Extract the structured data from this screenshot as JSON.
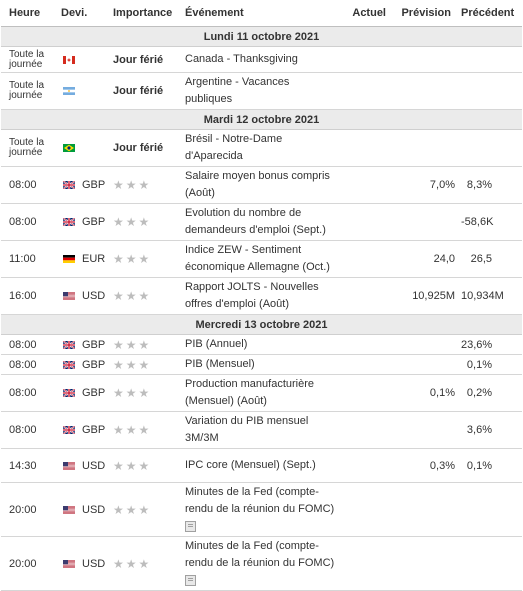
{
  "columns": {
    "time": "Heure",
    "currency": "Devi.",
    "importance": "Importance",
    "event": "Événement",
    "actual": "Actuel",
    "forecast": "Prévision",
    "previous": "Précédent"
  },
  "days": [
    {
      "label": "Lundi 11 octobre 2021",
      "events": [
        {
          "time": "Toute la journée",
          "flag": "ca",
          "currency": "",
          "importance": "Jour férié",
          "event": "Canada - Thanksgiving",
          "actual": "",
          "forecast": "",
          "previous": ""
        },
        {
          "time": "Toute la journée",
          "flag": "ar",
          "currency": "",
          "importance": "Jour férié",
          "event": "Argentine - Vacances publiques",
          "actual": "",
          "forecast": "",
          "previous": ""
        }
      ]
    },
    {
      "label": "Mardi 12 octobre 2021",
      "events": [
        {
          "time": "Toute la journée",
          "flag": "br",
          "currency": "",
          "importance": "Jour férié",
          "event": "Brésil - Notre-Dame d'Aparecida",
          "actual": "",
          "forecast": "",
          "previous": ""
        },
        {
          "time": "08:00",
          "flag": "gb",
          "currency": "GBP",
          "importance": "★★★",
          "event": "Salaire moyen bonus compris (Août)",
          "actual": "",
          "forecast": "7,0%",
          "previous": "8,3%"
        },
        {
          "time": "08:00",
          "flag": "gb",
          "currency": "GBP",
          "importance": "★★★",
          "event": "Evolution du nombre de demandeurs d'emploi (Sept.)",
          "actual": "",
          "forecast": "",
          "previous": "-58,6K"
        },
        {
          "time": "11:00",
          "flag": "de",
          "currency": "EUR",
          "importance": "★★★",
          "event": "Indice ZEW - Sentiment économique Allemagne (Oct.)",
          "actual": "",
          "forecast": "24,0",
          "previous": "26,5"
        },
        {
          "time": "16:00",
          "flag": "us",
          "currency": "USD",
          "importance": "★★★",
          "event": "Rapport JOLTS - Nouvelles offres d'emploi (Août)",
          "actual": "",
          "forecast": "10,925M",
          "previous": "10,934M"
        }
      ]
    },
    {
      "label": "Mercredi 13 octobre 2021",
      "events": [
        {
          "time": "08:00",
          "flag": "gb",
          "currency": "GBP",
          "importance": "★★★",
          "event": "PIB (Annuel)",
          "actual": "",
          "forecast": "",
          "previous": "23,6%"
        },
        {
          "time": "08:00",
          "flag": "gb",
          "currency": "GBP",
          "importance": "★★★",
          "event": "PIB (Mensuel)",
          "actual": "",
          "forecast": "",
          "previous": "0,1%"
        },
        {
          "time": "08:00",
          "flag": "gb",
          "currency": "GBP",
          "importance": "★★★",
          "event": "Production manufacturière (Mensuel) (Août)",
          "actual": "",
          "forecast": "0,1%",
          "previous": "0,2%"
        },
        {
          "time": "08:00",
          "flag": "gb",
          "currency": "GBP",
          "importance": "★★★",
          "event": "Variation du PIB mensuel 3M/3M",
          "actual": "",
          "forecast": "",
          "previous": "3,6%"
        },
        {
          "time": "14:30",
          "flag": "us",
          "currency": "USD",
          "importance": "★★★",
          "event": "IPC core (Mensuel) (Sept.)",
          "actual": "",
          "forecast": "0,3%",
          "previous": "0,1%"
        },
        {
          "time": "20:00",
          "flag": "us",
          "currency": "USD",
          "importance": "★★★",
          "event": "Minutes de la Fed (compte-rendu de la réunion du FOMC)",
          "actual": "",
          "forecast": "",
          "previous": "",
          "icon": "document-icon"
        },
        {
          "time": "20:00",
          "flag": "us",
          "currency": "USD",
          "importance": "★★★",
          "event": "Minutes de la Fed (compte-rendu de la réunion du FOMC)",
          "actual": "",
          "forecast": "",
          "previous": "",
          "icon": "document-icon"
        }
      ]
    }
  ],
  "colors": {
    "day_header_bg": "#ebebeb",
    "star_gray": "#bdbdbd",
    "border": "#d6d6d6"
  }
}
